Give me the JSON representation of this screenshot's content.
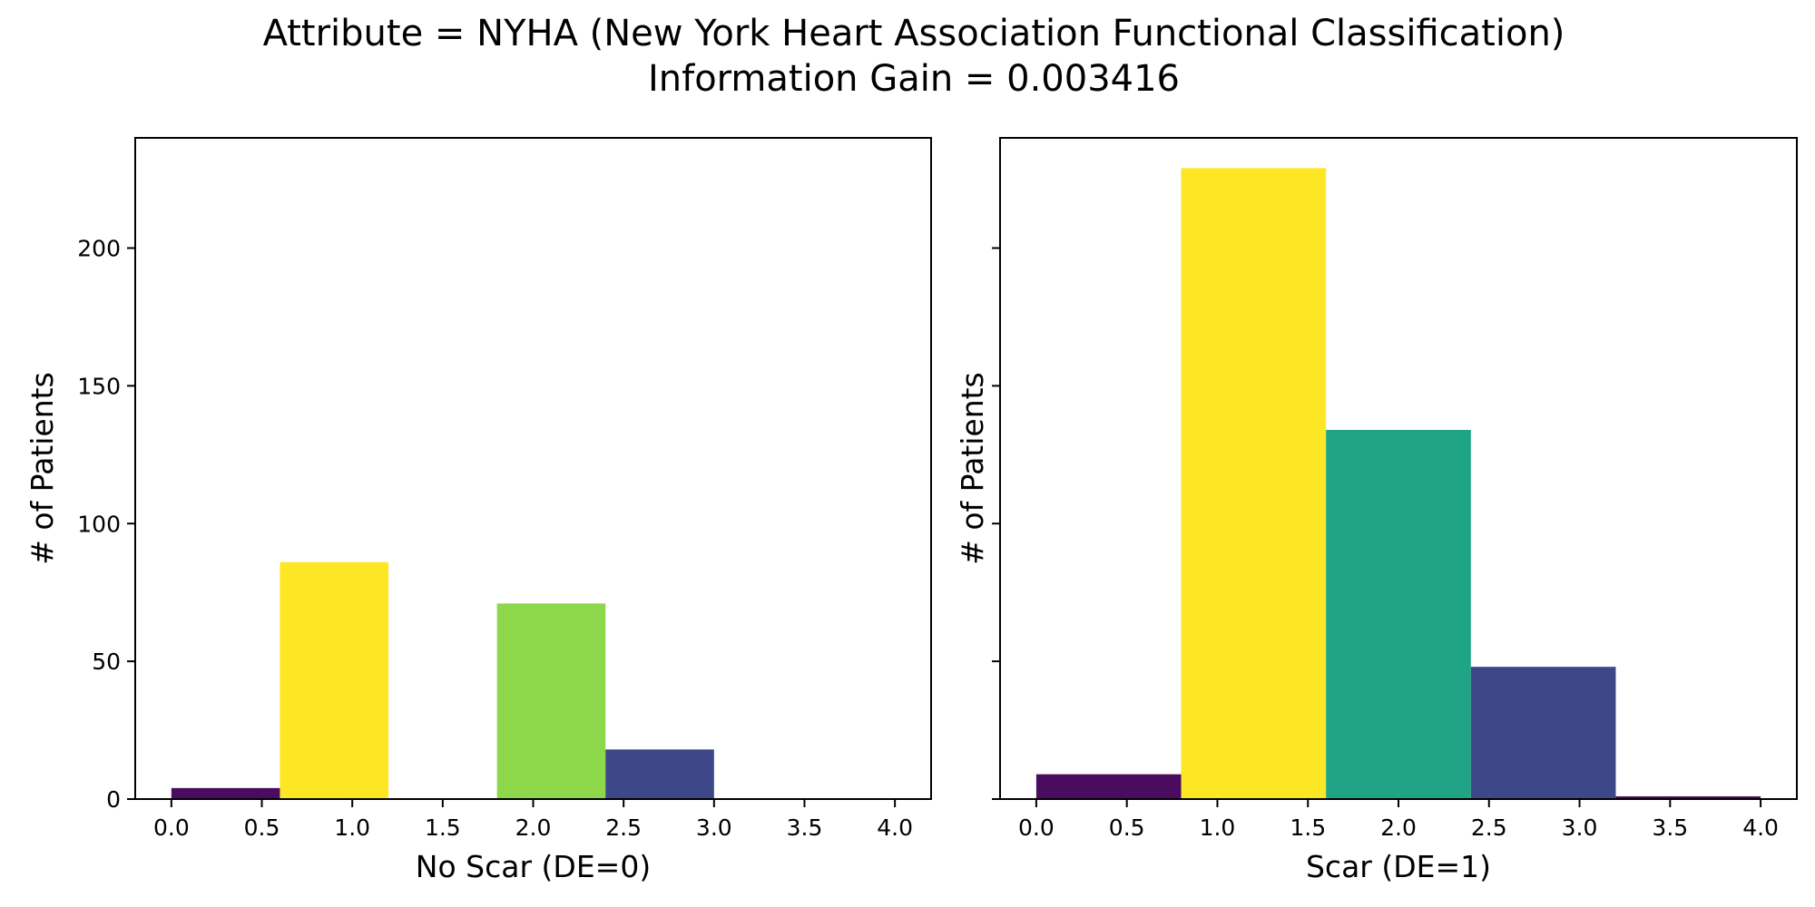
{
  "figure": {
    "title_line1": "Attribute = NYHA (New York Heart Association Functional Classification)",
    "title_line2": "Information Gain = 0.003416"
  },
  "chart_data": [
    {
      "type": "bar",
      "xlabel": "No Scar (DE=0)",
      "ylabel": "# of Patients",
      "xlim": [
        -0.2,
        4.2
      ],
      "ylim": [
        0,
        240
      ],
      "x_ticks": [
        0.0,
        0.5,
        1.0,
        1.5,
        2.0,
        2.5,
        3.0,
        3.5,
        4.0
      ],
      "x_tick_labels": [
        "0.0",
        "0.5",
        "1.0",
        "1.5",
        "2.0",
        "2.5",
        "3.0",
        "3.5",
        "4.0"
      ],
      "y_ticks": [
        0,
        50,
        100,
        150,
        200
      ],
      "y_tick_labels": [
        "0",
        "50",
        "100",
        "150",
        "200"
      ],
      "show_y_tick_labels": true,
      "grid": false,
      "bars": [
        {
          "x0": 0.0,
          "x1": 0.6,
          "value": 4,
          "color": "#4a0c5e"
        },
        {
          "x0": 0.6,
          "x1": 1.2,
          "value": 86,
          "color": "#fde725"
        },
        {
          "x0": 1.2,
          "x1": 1.8,
          "value": 0,
          "color": "#31688e"
        },
        {
          "x0": 1.8,
          "x1": 2.4,
          "value": 71,
          "color": "#8cd84a"
        },
        {
          "x0": 2.4,
          "x1": 3.0,
          "value": 18,
          "color": "#3e4788"
        },
        {
          "x0": 3.0,
          "x1": 3.6,
          "value": 0,
          "color": "#440154"
        },
        {
          "x0": 3.6,
          "x1": 4.0,
          "value": 0,
          "color": "#440154"
        }
      ]
    },
    {
      "type": "bar",
      "xlabel": "Scar (DE=1)",
      "ylabel": "# of Patients",
      "xlim": [
        -0.2,
        4.2
      ],
      "ylim": [
        0,
        240
      ],
      "x_ticks": [
        0.0,
        0.5,
        1.0,
        1.5,
        2.0,
        2.5,
        3.0,
        3.5,
        4.0
      ],
      "x_tick_labels": [
        "0.0",
        "0.5",
        "1.0",
        "1.5",
        "2.0",
        "2.5",
        "3.0",
        "3.5",
        "4.0"
      ],
      "y_ticks": [
        0,
        50,
        100,
        150,
        200
      ],
      "y_tick_labels": [
        "0",
        "50",
        "100",
        "150",
        "200"
      ],
      "show_y_tick_labels": false,
      "grid": false,
      "bars": [
        {
          "x0": 0.0,
          "x1": 0.8,
          "value": 9,
          "color": "#4a0c5e"
        },
        {
          "x0": 0.8,
          "x1": 1.6,
          "value": 229,
          "color": "#fde725"
        },
        {
          "x0": 1.6,
          "x1": 2.4,
          "value": 134,
          "color": "#20a486"
        },
        {
          "x0": 2.4,
          "x1": 3.2,
          "value": 48,
          "color": "#3e4788"
        },
        {
          "x0": 3.2,
          "x1": 4.0,
          "value": 1,
          "color": "#4a0c5e"
        }
      ]
    }
  ]
}
